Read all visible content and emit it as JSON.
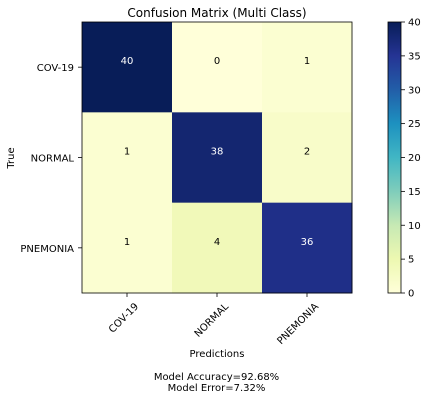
{
  "chart_data": {
    "type": "heatmap",
    "title": "Confusion Matrix (Multi Class)",
    "xlabel": "Predictions",
    "ylabel": "True",
    "x_categories": [
      "COV-19",
      "NORMAL",
      "PNEMONIA"
    ],
    "y_categories": [
      "COV-19",
      "NORMAL",
      "PNEMONIA"
    ],
    "values": [
      [
        40,
        0,
        1
      ],
      [
        1,
        38,
        2
      ],
      [
        1,
        4,
        36
      ]
    ],
    "colormap": "YlGnBu",
    "colorbar": {
      "min": 0,
      "max": 40,
      "ticks": [
        0,
        5,
        10,
        15,
        20,
        25,
        30,
        35,
        40
      ]
    },
    "grid": false,
    "legend": "colorbar-right"
  },
  "caption": {
    "accuracy": "Model Accuracy=92.68%",
    "error": "Model Error=7.32%"
  }
}
